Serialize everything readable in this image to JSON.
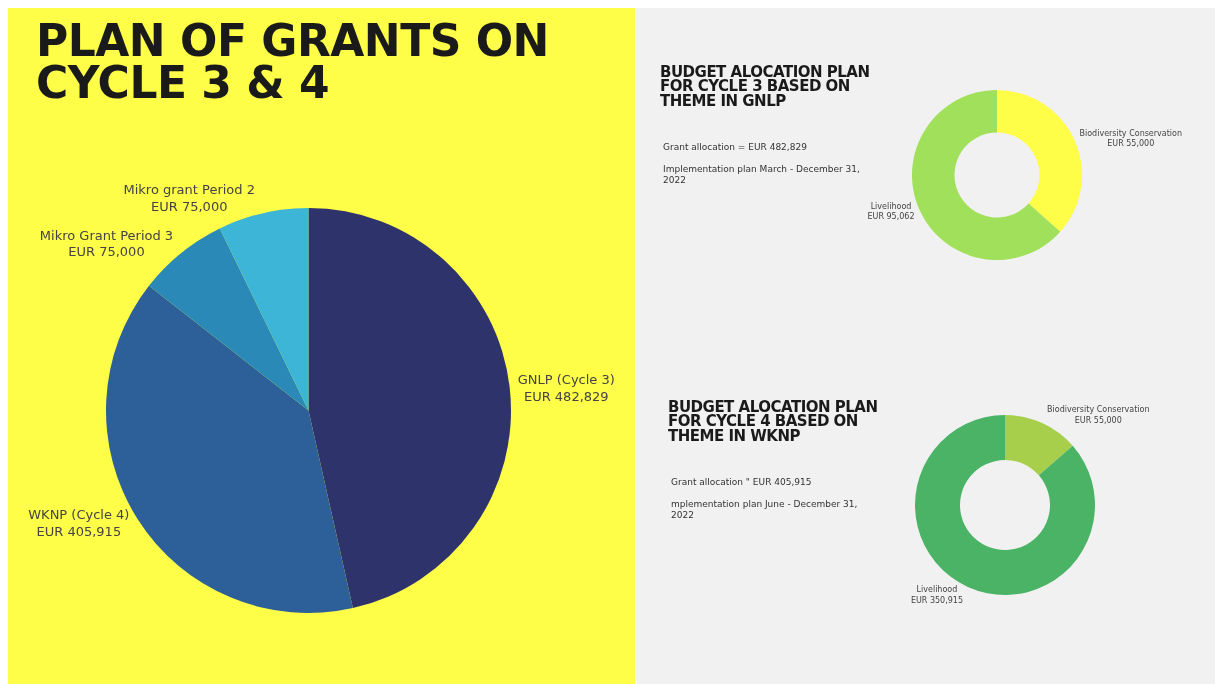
{
  "chart_data": [
    {
      "type": "pie",
      "title": "PLAN OF GRANTS ON CYCLE 3 & 4",
      "categories": [
        "GNLP (Cycle 3)",
        "WKNP (Cycle 4)",
        "Mikro Grant Period 3",
        "Mikro grant Period 2"
      ],
      "values": [
        482829,
        405915,
        75000,
        75000
      ],
      "colors": [
        "#2e346b",
        "#2d5f98",
        "#2b89b8",
        "#3db5d6"
      ],
      "value_labels": [
        "EUR 482,829",
        "EUR 405,915",
        "EUR 75,000",
        "EUR 75,000"
      ]
    },
    {
      "type": "donut",
      "title": "BUDGET ALOCATION PLAN FOR CYCLE 3 BASED ON THEME IN GNLP",
      "categories": [
        "Biodiversity Conservation",
        "Livelihood"
      ],
      "values": [
        55000,
        95062
      ],
      "colors": [
        "#fefd48",
        "#a1e05a"
      ],
      "value_labels": [
        "EUR 55,000",
        "EUR 95,062"
      ],
      "annotations": [
        "Grant allocation = EUR 482,829",
        "Implementation plan March - December 31, 2022"
      ]
    },
    {
      "type": "donut",
      "title": "BUDGET ALOCATION PLAN FOR CYCLE 4 BASED ON THEME IN WKNP",
      "categories": [
        "Biodiversity Conservation",
        "Livelihood"
      ],
      "values": [
        55000,
        350915
      ],
      "colors": [
        "#a8cf4c",
        "#4bb366"
      ],
      "value_labels": [
        "EUR 55,000",
        "EUR 350,915"
      ],
      "annotations": [
        "Grant allocation \" EUR 405,915",
        "mplementation plan June - December 31, 2022"
      ]
    }
  ]
}
